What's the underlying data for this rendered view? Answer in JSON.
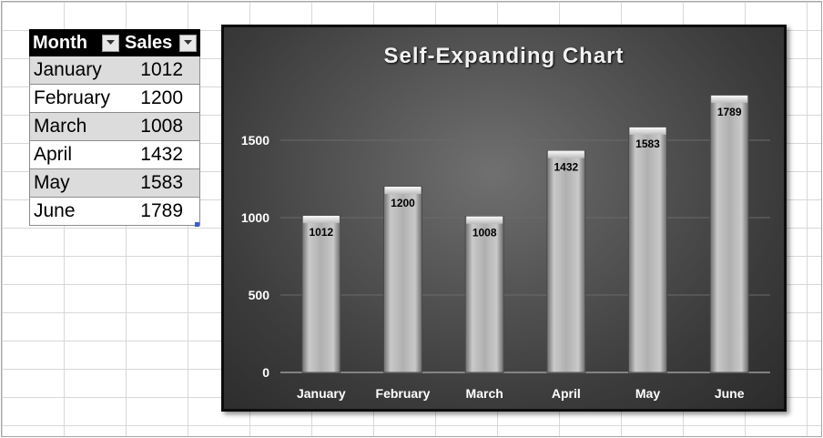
{
  "table": {
    "headers": [
      "Month",
      "Sales"
    ],
    "rows": [
      {
        "month": "January",
        "sales": "1012"
      },
      {
        "month": "February",
        "sales": "1200"
      },
      {
        "month": "March",
        "sales": "1008"
      },
      {
        "month": "April",
        "sales": "1432"
      },
      {
        "month": "May",
        "sales": "1583"
      },
      {
        "month": "June",
        "sales": "1789"
      }
    ]
  },
  "chart_data": {
    "type": "bar",
    "title": "Self-Expanding Chart",
    "categories": [
      "January",
      "February",
      "March",
      "April",
      "May",
      "June"
    ],
    "values": [
      1012,
      1200,
      1008,
      1432,
      1583,
      1789
    ],
    "yticks": [
      0,
      500,
      1000,
      1500
    ],
    "ylim": [
      0,
      2000
    ],
    "xlabel": "",
    "ylabel": "",
    "grid": true,
    "legend": "none",
    "data_labels": true
  },
  "colors": {
    "header_bg": "#000000",
    "band_bg": "#dcdcdc",
    "bar": "#b5b5b5",
    "chart_bg": "#4a4a4a"
  }
}
